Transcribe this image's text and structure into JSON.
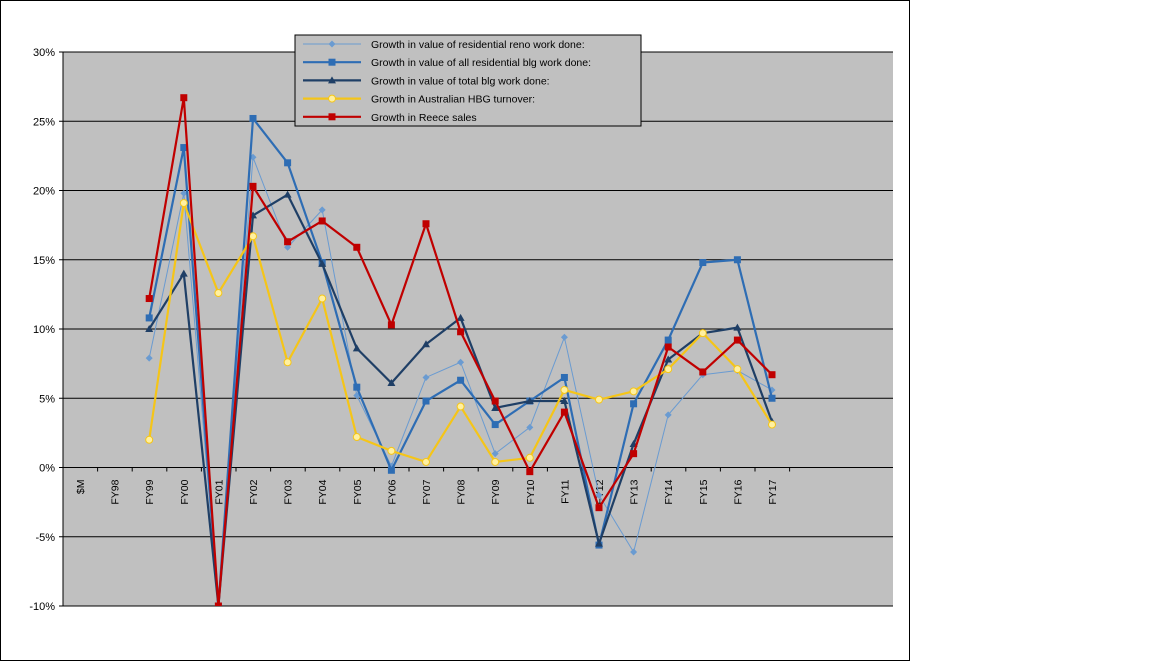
{
  "chart_data": {
    "type": "line",
    "categories": [
      "$M",
      "FY98",
      "FY99",
      "FY00",
      "FY01",
      "FY02",
      "FY03",
      "FY04",
      "FY05",
      "FY06",
      "FY07",
      "FY08",
      "FY09",
      "FY10",
      "FY11",
      "FY12",
      "FY13",
      "FY14",
      "FY15",
      "FY16",
      "FY17"
    ],
    "ylim": [
      -0.1,
      0.3
    ],
    "yticks": [
      {
        "value": -0.1,
        "label": "-10%"
      },
      {
        "value": -0.05,
        "label": "-5%"
      },
      {
        "value": 0.0,
        "label": "0%"
      },
      {
        "value": 0.05,
        "label": "5%"
      },
      {
        "value": 0.1,
        "label": "10%"
      },
      {
        "value": 0.15,
        "label": "15%"
      },
      {
        "value": 0.2,
        "label": "20%"
      },
      {
        "value": 0.25,
        "label": "25%"
      },
      {
        "value": 0.3,
        "label": "30%"
      }
    ],
    "grid": true,
    "plot_background": "#C0C0C0",
    "legend_position": "top",
    "series": [
      {
        "name": "Growth in value of residential reno work done:",
        "color": "#6A9BD1",
        "marker": "diamond",
        "values": [
          null,
          null,
          0.079,
          0.198,
          -0.1,
          0.224,
          0.159,
          0.186,
          0.052,
          0.001,
          0.065,
          0.076,
          0.01,
          0.029,
          0.094,
          -0.02,
          -0.061,
          0.038,
          0.067,
          0.07,
          0.056
        ]
      },
      {
        "name": "Growth in value of all residential blg work done:",
        "color": "#2E6DB4",
        "marker": "square",
        "values": [
          null,
          null,
          0.108,
          0.231,
          -0.1,
          0.252,
          0.22,
          0.148,
          0.058,
          -0.002,
          0.048,
          0.063,
          0.031,
          0.048,
          0.065,
          -0.056,
          0.046,
          0.092,
          0.148,
          0.15,
          0.05
        ]
      },
      {
        "name": "Growth in value of total blg work done:",
        "color": "#1F3F66",
        "marker": "triangle",
        "values": [
          null,
          null,
          0.1,
          0.14,
          -0.1,
          0.182,
          0.197,
          0.147,
          0.086,
          0.061,
          0.089,
          0.108,
          0.043,
          0.048,
          0.048,
          -0.055,
          0.017,
          0.078,
          0.097,
          0.101,
          0.033
        ]
      },
      {
        "name": "Growth in Australian HBG turnover:",
        "color": "#F5C518",
        "marker": "circle",
        "values": [
          null,
          null,
          0.02,
          0.191,
          0.126,
          0.167,
          0.076,
          0.122,
          0.022,
          0.012,
          0.004,
          0.044,
          0.004,
          0.007,
          0.056,
          0.049,
          0.055,
          0.071,
          0.097,
          0.071,
          0.031
        ]
      },
      {
        "name": "Growth in Reece sales",
        "color": "#C00000",
        "marker": "square",
        "values": [
          null,
          null,
          0.122,
          0.267,
          -0.1,
          0.203,
          0.163,
          0.178,
          0.159,
          0.103,
          0.176,
          0.098,
          0.048,
          -0.003,
          0.04,
          -0.029,
          0.01,
          0.087,
          0.069,
          0.092,
          0.067
        ]
      }
    ]
  }
}
